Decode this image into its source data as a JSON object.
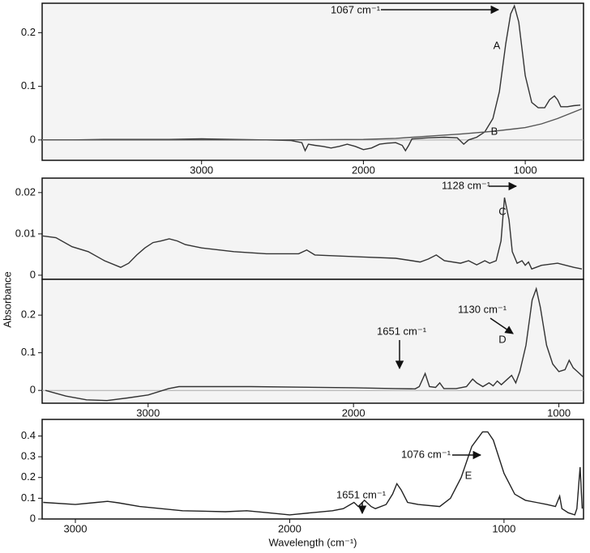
{
  "ylabel": "Absorbance",
  "xlabel": "Wavelength (cm⁻¹)",
  "chart_data": [
    {
      "type": "line",
      "xlim": [
        3985,
        640
      ],
      "ylim": [
        -0.038,
        0.255
      ],
      "xticks": [
        3000,
        2000,
        1000
      ],
      "yticks": [
        0,
        0.1,
        0.2
      ],
      "zero_line": true,
      "background": "#f4f4f4",
      "annotations": [
        "1067 cm⁻¹"
      ],
      "series": [
        {
          "name": "A",
          "color": "#333333",
          "x": [
            3980,
            3800,
            3600,
            3400,
            3200,
            3000,
            2800,
            2600,
            2450,
            2380,
            2360,
            2340,
            2300,
            2250,
            2200,
            2150,
            2100,
            2050,
            2000,
            1950,
            1900,
            1850,
            1800,
            1760,
            1740,
            1720,
            1700,
            1600,
            1500,
            1420,
            1380,
            1350,
            1300,
            1250,
            1200,
            1160,
            1120,
            1090,
            1067,
            1040,
            1000,
            960,
            920,
            880,
            850,
            820,
            800,
            780,
            740,
            700,
            660
          ],
          "values": [
            0,
            0,
            0.001,
            0.001,
            0.001,
            0.002,
            0.001,
            0,
            -0.001,
            -0.005,
            -0.02,
            -0.008,
            -0.01,
            -0.012,
            -0.015,
            -0.012,
            -0.008,
            -0.012,
            -0.018,
            -0.015,
            -0.008,
            -0.006,
            -0.005,
            -0.01,
            -0.02,
            -0.01,
            0.002,
            0.004,
            0.005,
            0.004,
            -0.008,
            0,
            0.005,
            0.015,
            0.04,
            0.09,
            0.18,
            0.235,
            0.25,
            0.22,
            0.12,
            0.07,
            0.06,
            0.06,
            0.075,
            0.082,
            0.075,
            0.062,
            0.062,
            0.064,
            0.065
          ]
        },
        {
          "name": "B",
          "color": "#555555",
          "x": [
            3980,
            3000,
            2500,
            2000,
            1800,
            1600,
            1400,
            1200,
            1000,
            900,
            800,
            700,
            650
          ],
          "values": [
            0,
            0,
            0,
            0.001,
            0.003,
            0.007,
            0.011,
            0.016,
            0.023,
            0.03,
            0.04,
            0.052,
            0.058
          ]
        }
      ]
    },
    {
      "type": "line",
      "xlim": [
        3985,
        640
      ],
      "ylim": [
        -0.001,
        0.0235
      ],
      "yticks": [
        0,
        0.01,
        0.02
      ],
      "background": "#f4f4f4",
      "annotations": [
        "1128 cm⁻¹"
      ],
      "series": [
        {
          "name": "C",
          "color": "#333333",
          "x": [
            3980,
            3900,
            3800,
            3700,
            3600,
            3500,
            3450,
            3400,
            3350,
            3300,
            3250,
            3200,
            3150,
            3100,
            3000,
            2800,
            2600,
            2400,
            2350,
            2300,
            2000,
            1800,
            1700,
            1650,
            1600,
            1550,
            1500,
            1400,
            1350,
            1300,
            1250,
            1220,
            1180,
            1150,
            1128,
            1100,
            1080,
            1050,
            1020,
            1000,
            980,
            960,
            900,
            800,
            700,
            650
          ],
          "values": [
            0.0095,
            0.0091,
            0.0069,
            0.0057,
            0.0035,
            0.0019,
            0.0029,
            0.0049,
            0.0066,
            0.0079,
            0.0083,
            0.0088,
            0.0083,
            0.0074,
            0.0066,
            0.0057,
            0.0052,
            0.0052,
            0.0061,
            0.0049,
            0.0044,
            0.0041,
            0.0035,
            0.0032,
            0.0039,
            0.0049,
            0.0035,
            0.0029,
            0.0035,
            0.0025,
            0.0035,
            0.0029,
            0.0035,
            0.0083,
            0.0188,
            0.0134,
            0.0057,
            0.0029,
            0.0035,
            0.0024,
            0.0032,
            0.0015,
            0.0024,
            0.0029,
            0.0019,
            0.0015
          ]
        }
      ]
    },
    {
      "type": "line",
      "xlim": [
        3516,
        880
      ],
      "ylim": [
        -0.034,
        0.295
      ],
      "xticks": [
        3000,
        2000,
        1000
      ],
      "yticks": [
        0,
        0.1,
        0.2
      ],
      "zero_line": true,
      "background": "#f4f4f4",
      "annotations": [
        "1651 cm⁻¹",
        "1130 cm⁻¹"
      ],
      "series": [
        {
          "name": "D",
          "color": "#333333",
          "x": [
            3500,
            3400,
            3300,
            3200,
            3100,
            3000,
            2900,
            2850,
            2500,
            2000,
            1800,
            1700,
            1680,
            1655,
            1651,
            1630,
            1600,
            1580,
            1560,
            1500,
            1450,
            1420,
            1400,
            1370,
            1340,
            1320,
            1300,
            1280,
            1250,
            1230,
            1210,
            1190,
            1160,
            1140,
            1130,
            1110,
            1090,
            1060,
            1030,
            1000,
            970,
            950,
            930,
            910,
            890,
            880
          ],
          "values": [
            0,
            -0.015,
            -0.025,
            -0.027,
            -0.02,
            -0.012,
            0.005,
            0.01,
            0.01,
            0.007,
            0.005,
            0.004,
            0.01,
            0.04,
            0.045,
            0.01,
            0.008,
            0.02,
            0.005,
            0.005,
            0.01,
            0.03,
            0.02,
            0.01,
            0.02,
            0.012,
            0.025,
            0.015,
            0.03,
            0.04,
            0.02,
            0.05,
            0.12,
            0.2,
            0.24,
            0.27,
            0.22,
            0.12,
            0.07,
            0.05,
            0.055,
            0.08,
            0.06,
            0.05,
            0.04,
            0.035
          ]
        }
      ]
    },
    {
      "type": "line",
      "xlim": [
        3155,
        629
      ],
      "ylim": [
        0,
        0.48
      ],
      "xticks": [
        3000,
        2000,
        1000
      ],
      "yticks": [
        0,
        0.1,
        0.2,
        0.3,
        0.4
      ],
      "background": "#ffffff",
      "annotations": [
        "1651 cm⁻¹",
        "1076 cm⁻¹"
      ],
      "series": [
        {
          "name": "E",
          "color": "#222222",
          "x": [
            3150,
            3000,
            2900,
            2850,
            2800,
            2700,
            2500,
            2300,
            2200,
            2100,
            2000,
            1900,
            1800,
            1750,
            1700,
            1680,
            1651,
            1620,
            1600,
            1550,
            1520,
            1500,
            1480,
            1450,
            1400,
            1300,
            1250,
            1200,
            1150,
            1100,
            1076,
            1050,
            1000,
            950,
            900,
            850,
            800,
            760,
            740,
            730,
            700,
            670,
            660,
            645,
            635
          ],
          "values": [
            0.08,
            0.07,
            0.08,
            0.085,
            0.078,
            0.06,
            0.04,
            0.035,
            0.04,
            0.03,
            0.02,
            0.03,
            0.04,
            0.05,
            0.08,
            0.06,
            0.09,
            0.06,
            0.05,
            0.07,
            0.12,
            0.17,
            0.14,
            0.08,
            0.07,
            0.06,
            0.1,
            0.2,
            0.35,
            0.42,
            0.42,
            0.38,
            0.22,
            0.12,
            0.09,
            0.08,
            0.07,
            0.06,
            0.11,
            0.05,
            0.03,
            0.02,
            0.05,
            0.25,
            0.05
          ]
        }
      ]
    }
  ]
}
